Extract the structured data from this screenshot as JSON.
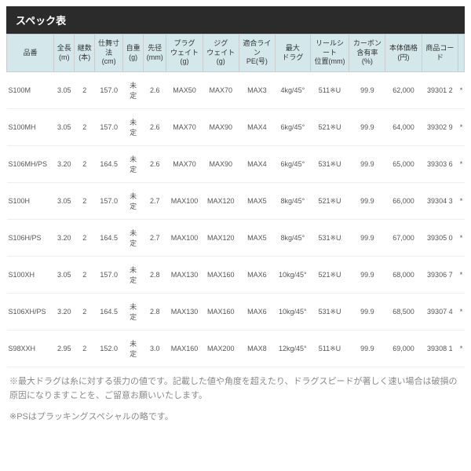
{
  "title": "スペック表",
  "headers": [
    "品番",
    "全長\n(m)",
    "継数\n(本)",
    "仕舞寸\n法\n(cm)",
    "自重\n(g)",
    "先径\n(mm)",
    "プラグ\nウェイト\n(g)",
    "ジグ\nウェイト\n(g)",
    "適合ライ\nン\nPE(号)",
    "最大\nドラグ",
    "リールシ\nート\n位置(mm)",
    "カーボン\n含有率\n(%)",
    "本体価格\n(円)",
    "商品コー\nド",
    ""
  ],
  "rows": [
    [
      "S100M",
      "3.05",
      "2",
      "157.0",
      "未定",
      "2.6",
      "MAX50",
      "MAX70",
      "MAX3",
      "4kg/45°",
      "511※U",
      "99.9",
      "62,000",
      "39301 2",
      "*"
    ],
    [
      "S100MH",
      "3.05",
      "2",
      "157.0",
      "未定",
      "2.6",
      "MAX70",
      "MAX90",
      "MAX4",
      "6kg/45°",
      "521※U",
      "99.9",
      "64,000",
      "39302 9",
      "*"
    ],
    [
      "S106MH/PS",
      "3.20",
      "2",
      "164.5",
      "未定",
      "2.6",
      "MAX70",
      "MAX90",
      "MAX4",
      "6kg/45°",
      "531※U",
      "99.9",
      "65,000",
      "39303 6",
      "*"
    ],
    [
      "S100H",
      "3.05",
      "2",
      "157.0",
      "未定",
      "2.7",
      "MAX100",
      "MAX120",
      "MAX5",
      "8kg/45°",
      "521※U",
      "99.9",
      "66,000",
      "39304 3",
      "*"
    ],
    [
      "S106H/PS",
      "3.20",
      "2",
      "164.5",
      "未定",
      "2.7",
      "MAX100",
      "MAX120",
      "MAX5",
      "8kg/45°",
      "531※U",
      "99.9",
      "67,000",
      "39305 0",
      "*"
    ],
    [
      "S100XH",
      "3.05",
      "2",
      "157.0",
      "未定",
      "2.8",
      "MAX130",
      "MAX160",
      "MAX6",
      "10kg/45°",
      "521※U",
      "99.9",
      "68,000",
      "39306 7",
      "*"
    ],
    [
      "S106XH/PS",
      "3.20",
      "2",
      "164.5",
      "未定",
      "2.8",
      "MAX130",
      "MAX160",
      "MAX6",
      "10kg/45°",
      "531※U",
      "99.9",
      "68,500",
      "39307 4",
      "*"
    ],
    [
      "S98XXH",
      "2.95",
      "2",
      "152.0",
      "未定",
      "3.0",
      "MAX160",
      "MAX200",
      "MAX8",
      "12kg/45°",
      "511※U",
      "99.9",
      "69,000",
      "39308 1",
      "*"
    ]
  ],
  "notes": [
    "※最大ドラグは糸に対する張力の値です。記載した値や角度を超えたり、ドラグスピードが著しく速い場合は破損の原因になりますことを、ご留意お願いいたします。",
    "※PSはプラッキングスペシャルの略です。"
  ],
  "colors": {
    "title_bg": "#2b2b2b",
    "header_bg": "#d4e8ec",
    "border": "#e5e5e5",
    "text": "#555",
    "note": "#888"
  }
}
